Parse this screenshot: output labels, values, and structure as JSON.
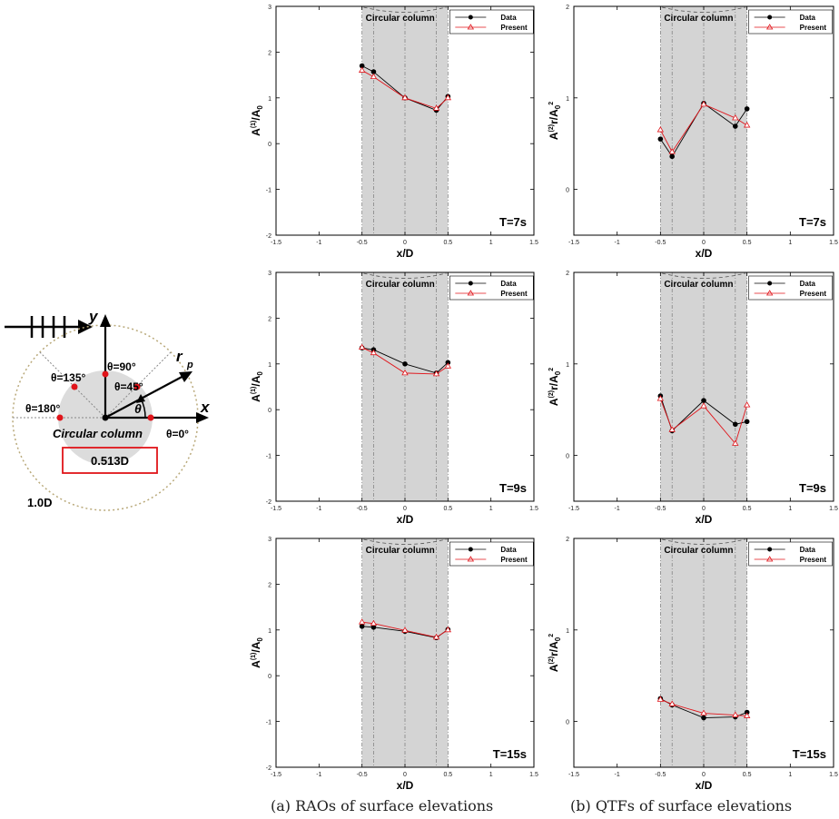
{
  "schematic": {
    "labels": {
      "y_axis": "y",
      "x_axis": "x",
      "r_p": "r",
      "r_p_sub": "p",
      "theta": "θ",
      "theta_90": "θ=90°",
      "theta_135": "θ=135°",
      "theta_45": "θ=45°",
      "theta_180": "θ=180°",
      "theta_0": "θ=0°",
      "column": "Circular column",
      "inner_diameter": "0.513D",
      "outer_diameter": "1.0D"
    },
    "colors": {
      "gauge": "#e0141a",
      "box": "#e0141a",
      "column": "#dcdcdc",
      "ring": "#b9a97a"
    }
  },
  "captions": {
    "a": "(a) RAOs of surface elevations",
    "b": "(b) QTFs of surface elevations"
  },
  "chart_data": [
    {
      "id": "rao-7",
      "type": "line",
      "panel_label": "T=7s",
      "xlabel": "x/D",
      "ylabel": {
        "base": "A",
        "sup": "(1)",
        "mid": "/A",
        "sub": "0"
      },
      "xlim": [
        -1.5,
        1.5
      ],
      "ylim": [
        -2,
        3
      ],
      "xticks": [
        -1.5,
        -1,
        -0.5,
        0,
        0.5,
        1,
        1.5
      ],
      "yticks": [
        -2,
        -1,
        0,
        1,
        2,
        3
      ],
      "column_label": "Circular column",
      "column_range": [
        -0.5,
        0.5
      ],
      "legend": [
        "Data",
        "Present"
      ],
      "series": [
        {
          "name": "Data",
          "x": [
            -0.5,
            -0.365,
            0,
            0.365,
            0.5
          ],
          "y": [
            1.7,
            1.57,
            1.0,
            0.73,
            1.03
          ]
        },
        {
          "name": "Present",
          "x": [
            -0.5,
            -0.365,
            0,
            0.365,
            0.5
          ],
          "y": [
            1.6,
            1.46,
            1.0,
            0.77,
            1.0
          ]
        }
      ]
    },
    {
      "id": "qtf-7",
      "type": "line",
      "panel_label": "T=7s",
      "xlabel": "x/D",
      "ylabel": {
        "base": "A",
        "sup": "(2)",
        "mid": "r/A",
        "sub": "0",
        "sup2": "2"
      },
      "xlim": [
        -1.5,
        1.5
      ],
      "ylim": [
        -0.5,
        2
      ],
      "xticks": [
        -1.5,
        -1,
        -0.5,
        0,
        0.5,
        1,
        1.5
      ],
      "yticks": [
        0,
        1,
        2
      ],
      "column_label": "Circular column",
      "column_range": [
        -0.5,
        0.5
      ],
      "legend": [
        "Data",
        "Present"
      ],
      "series": [
        {
          "name": "Data",
          "x": [
            -0.5,
            -0.365,
            0,
            0.365,
            0.5
          ],
          "y": [
            0.55,
            0.36,
            0.94,
            0.69,
            0.88
          ]
        },
        {
          "name": "Present",
          "x": [
            -0.5,
            -0.365,
            0,
            0.365,
            0.5
          ],
          "y": [
            0.65,
            0.41,
            0.93,
            0.78,
            0.7
          ]
        }
      ]
    },
    {
      "id": "rao-9",
      "type": "line",
      "panel_label": "T=9s",
      "xlabel": "x/D",
      "ylabel": {
        "base": "A",
        "sup": "(1)",
        "mid": "/A",
        "sub": "0"
      },
      "xlim": [
        -1.5,
        1.5
      ],
      "ylim": [
        -2,
        3
      ],
      "xticks": [
        -1.5,
        -1,
        -0.5,
        0,
        0.5,
        1,
        1.5
      ],
      "yticks": [
        -2,
        -1,
        0,
        1,
        2,
        3
      ],
      "column_label": "Circular column",
      "column_range": [
        -0.5,
        0.5
      ],
      "legend": [
        "Data",
        "Present"
      ],
      "series": [
        {
          "name": "Data",
          "x": [
            -0.5,
            -0.365,
            0,
            0.365,
            0.5
          ],
          "y": [
            1.35,
            1.31,
            1.0,
            0.8,
            1.03
          ]
        },
        {
          "name": "Present",
          "x": [
            -0.5,
            -0.365,
            0,
            0.365,
            0.5
          ],
          "y": [
            1.36,
            1.24,
            0.8,
            0.78,
            0.95
          ]
        }
      ]
    },
    {
      "id": "qtf-9",
      "type": "line",
      "panel_label": "T=9s",
      "xlabel": "x/D",
      "ylabel": {
        "base": "A",
        "sup": "(2)",
        "mid": "r/A",
        "sub": "0",
        "sup2": "2"
      },
      "xlim": [
        -1.5,
        1.5
      ],
      "ylim": [
        -0.5,
        2
      ],
      "xticks": [
        -1.5,
        -1,
        -0.5,
        0,
        0.5,
        1,
        1.5
      ],
      "yticks": [
        0,
        1,
        2
      ],
      "column_label": "Circular column",
      "column_range": [
        -0.5,
        0.5
      ],
      "legend": [
        "Data",
        "Present"
      ],
      "series": [
        {
          "name": "Data",
          "x": [
            -0.5,
            -0.365,
            0,
            0.365,
            0.5
          ],
          "y": [
            0.65,
            0.27,
            0.6,
            0.34,
            0.37
          ]
        },
        {
          "name": "Present",
          "x": [
            -0.5,
            -0.365,
            0,
            0.365,
            0.5
          ],
          "y": [
            0.62,
            0.28,
            0.54,
            0.13,
            0.55
          ]
        }
      ]
    },
    {
      "id": "rao-15",
      "type": "line",
      "panel_label": "T=15s",
      "xlabel": "x/D",
      "ylabel": {
        "base": "A",
        "sup": "(1)",
        "mid": "/A",
        "sub": "0"
      },
      "xlim": [
        -1.5,
        1.5
      ],
      "ylim": [
        -2,
        3
      ],
      "xticks": [
        -1.5,
        -1,
        -0.5,
        0,
        0.5,
        1,
        1.5
      ],
      "yticks": [
        -2,
        -1,
        0,
        1,
        2,
        3
      ],
      "column_label": "Circular column",
      "column_range": [
        -0.5,
        0.5
      ],
      "legend": [
        "Data",
        "Present"
      ],
      "series": [
        {
          "name": "Data",
          "x": [
            -0.5,
            -0.365,
            0,
            0.365,
            0.5
          ],
          "y": [
            1.08,
            1.06,
            0.97,
            0.83,
            1.01
          ]
        },
        {
          "name": "Present",
          "x": [
            -0.5,
            -0.365,
            0,
            0.365,
            0.5
          ],
          "y": [
            1.17,
            1.14,
            0.99,
            0.84,
            1.0
          ]
        }
      ]
    },
    {
      "id": "qtf-15",
      "type": "line",
      "panel_label": "T=15s",
      "xlabel": "x/D",
      "ylabel": {
        "base": "A",
        "sup": "(2)",
        "mid": "r/A",
        "sub": "0",
        "sup2": "2"
      },
      "xlim": [
        -1.5,
        1.5
      ],
      "ylim": [
        -0.5,
        2
      ],
      "xticks": [
        -1.5,
        -1,
        -0.5,
        0,
        0.5,
        1,
        1.5
      ],
      "yticks": [
        0,
        1,
        2
      ],
      "column_label": "Circular column",
      "column_range": [
        -0.5,
        0.5
      ],
      "legend": [
        "Data",
        "Present"
      ],
      "series": [
        {
          "name": "Data",
          "x": [
            -0.5,
            -0.365,
            0,
            0.365,
            0.5
          ],
          "y": [
            0.25,
            0.18,
            0.04,
            0.05,
            0.1
          ]
        },
        {
          "name": "Present",
          "x": [
            -0.5,
            -0.365,
            0,
            0.365,
            0.5
          ],
          "y": [
            0.24,
            0.19,
            0.09,
            0.07,
            0.06
          ]
        }
      ]
    }
  ]
}
